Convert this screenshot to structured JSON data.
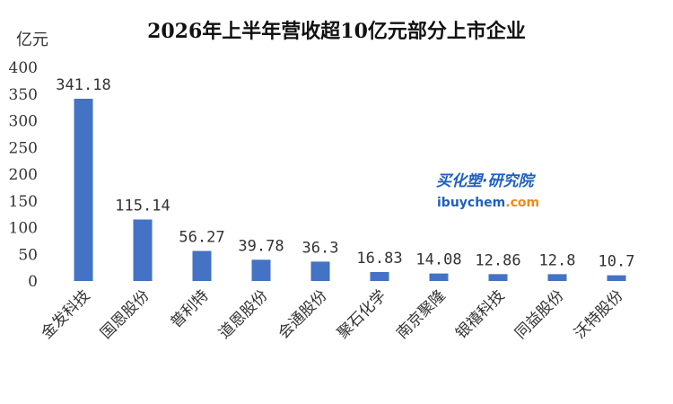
{
  "watermark": {
    "line1": "买化塑·研究院",
    "line2_prefix": "ibuychem",
    "line2_suffix": ".com",
    "color_primary": "#1f5fbf",
    "color_accent": "#f08a1c"
  },
  "chart_data": {
    "type": "bar",
    "title": "2026年上半年营收超10亿元部分上市企业",
    "unit_label": "亿元",
    "categories": [
      "金发科技",
      "国恩股份",
      "普利特",
      "道恩股份",
      "会通股份",
      "聚石化学",
      "南京聚隆",
      "银禧科技",
      "同益股份",
      "沃特股份"
    ],
    "values": [
      341.18,
      115.14,
      56.27,
      39.78,
      36.3,
      16.83,
      14.08,
      12.86,
      12.8,
      10.7
    ],
    "data_labels": [
      "341.18",
      "115.14",
      "56.27",
      "39.78",
      "36.3",
      "16.83",
      "14.08",
      "12.86",
      "12.8",
      "10.7"
    ],
    "ylim": [
      0,
      400
    ],
    "yticks": [
      "0",
      "50",
      "100",
      "150",
      "200",
      "250",
      "300",
      "350",
      "400"
    ],
    "bar_color": "#4472c4",
    "grid": false,
    "legend": "none"
  }
}
